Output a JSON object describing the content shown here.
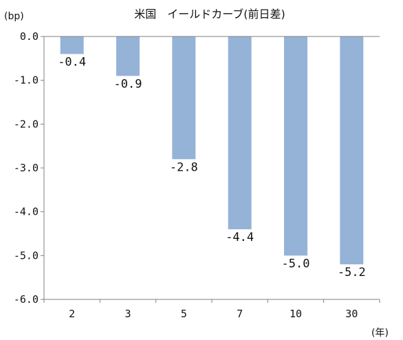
{
  "chart_data": {
    "type": "bar",
    "title": "米国　イールドカーブ(前日差)",
    "ylabel": "(bp)",
    "xlabel": "(年)",
    "categories": [
      "2",
      "3",
      "5",
      "7",
      "10",
      "30"
    ],
    "values": [
      -0.4,
      -0.9,
      -2.8,
      -4.4,
      -5.0,
      -5.2
    ],
    "data_labels": [
      "-0.4",
      "-0.9",
      "-2.8",
      "-4.4",
      "-5.0",
      "-5.2"
    ],
    "ylim": [
      -6.0,
      0.0
    ],
    "yticks": [
      0.0,
      -1.0,
      -2.0,
      -3.0,
      -4.0,
      -5.0,
      -6.0
    ],
    "ytick_labels": [
      "0.0",
      "-1.0",
      "-2.0",
      "-3.0",
      "-4.0",
      "-5.0",
      "-6.0"
    ],
    "grid": false,
    "bar_color": "#95b3d7"
  }
}
